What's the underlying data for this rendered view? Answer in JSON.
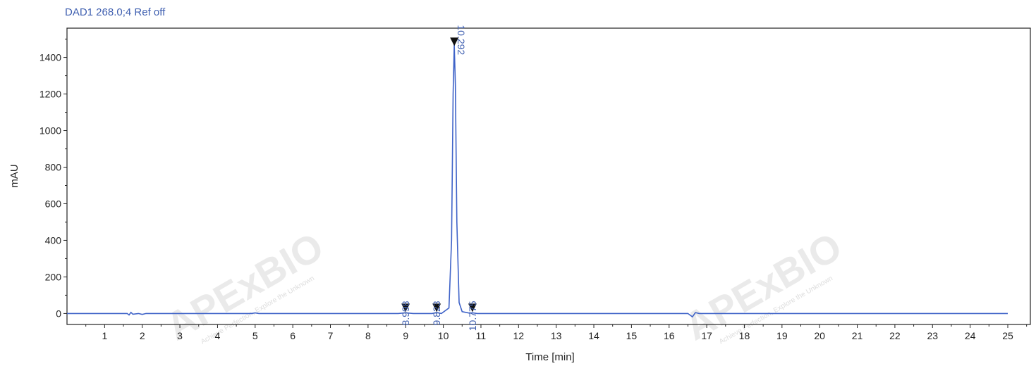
{
  "chart_data": {
    "type": "line",
    "title": "DAD1 268.0;4 Ref off",
    "xlabel": "Time [min]",
    "ylabel": "mAU",
    "xlim": [
      0,
      25.6
    ],
    "ylim": [
      -60,
      1560
    ],
    "xticks": [
      1,
      2,
      3,
      4,
      5,
      6,
      7,
      8,
      9,
      10,
      11,
      12,
      13,
      14,
      15,
      16,
      17,
      18,
      19,
      20,
      21,
      22,
      23,
      24,
      25
    ],
    "yticks": [
      0,
      200,
      400,
      600,
      800,
      1000,
      1200,
      1400
    ],
    "grid": false,
    "line_color": "#3f63c8",
    "series": [
      {
        "x": [
          0,
          1.6,
          1.65,
          1.7,
          1.75,
          1.9,
          2.0,
          2.1,
          4.9,
          5.0,
          5.1,
          8.8,
          9.0,
          9.2,
          9.7,
          9.82,
          9.95,
          10.15,
          10.22,
          10.26,
          10.29,
          10.32,
          10.36,
          10.42,
          10.5,
          10.7,
          10.775,
          10.9,
          16.5,
          16.62,
          16.7,
          16.8,
          25.0
        ],
        "y": [
          0,
          0,
          -8,
          6,
          -4,
          0,
          -5,
          0,
          0,
          3,
          0,
          0,
          4,
          0,
          0,
          5,
          0,
          30,
          400,
          1200,
          1470,
          1250,
          500,
          60,
          10,
          2,
          4,
          0,
          0,
          -18,
          5,
          0,
          0
        ]
      }
    ],
    "peaks": [
      {
        "label": "8.998",
        "x": 8.998
      },
      {
        "label": "9.823",
        "x": 9.823
      },
      {
        "label": "10.292",
        "x": 10.292
      },
      {
        "label": "10.775",
        "x": 10.775
      }
    ]
  },
  "watermark": {
    "logo_text": "APExBIO",
    "tagline": "Achieve Perfection, Explore the Unknown"
  }
}
